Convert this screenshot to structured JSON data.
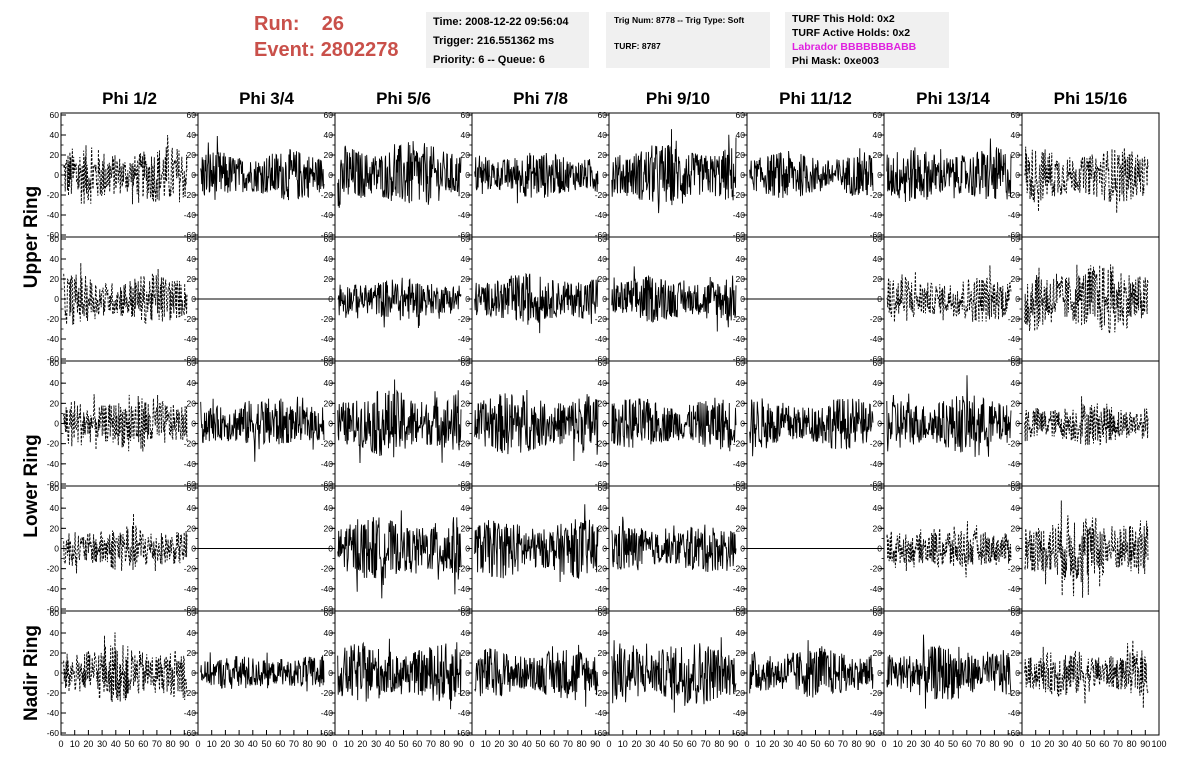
{
  "header": {
    "run_label": "Run:",
    "run_value": "26",
    "event_label": "Event:",
    "event_value": "2802278",
    "time_line": "Time: 2008-12-22 09:56:04",
    "trigger_line": "Trigger: 216.551362 ms",
    "priority_line": "Priority: 6 -- Queue: 6",
    "trig_num_line": "Trig Num: 8778 -- Trig Type: Soft",
    "turf_line": "TURF: 8787",
    "turf_hold_line": "TURF This Hold: 0x2",
    "turf_active_line": "TURF Active Holds: 0x2",
    "labrador_line": "Labrador BBBBBBBABB",
    "phi_mask_line": "Phi Mask: 0xe003",
    "labrador_color": "#e020e0",
    "run_color": "#c9504a"
  },
  "chart_data": {
    "type": "line",
    "columns": [
      "Phi 1/2",
      "Phi 3/4",
      "Phi 5/6",
      "Phi 7/8",
      "Phi 9/10",
      "Phi 11/12",
      "Phi 13/14",
      "Phi 15/16"
    ],
    "row_labels": [
      {
        "label": "Upper Ring",
        "rows": [
          0,
          1
        ]
      },
      {
        "label": "Lower Ring",
        "rows": [
          2,
          3
        ]
      },
      {
        "label": "Nadir Ring",
        "rows": [
          4
        ]
      }
    ],
    "xlim": [
      0,
      100
    ],
    "ylim": [
      -60,
      60
    ],
    "x_ticks": [
      0,
      10,
      20,
      30,
      40,
      50,
      60,
      70,
      80,
      90,
      100
    ],
    "y_ticks": [
      -60,
      -40,
      -20,
      0,
      20,
      40,
      60
    ],
    "grid": false,
    "panels": [
      [
        {
          "style": "dashed",
          "amplitude": 30,
          "flat": false
        },
        {
          "style": "solid",
          "amplitude": 26,
          "flat": false
        },
        {
          "style": "solid",
          "amplitude": 34,
          "flat": false
        },
        {
          "style": "solid",
          "amplitude": 24,
          "flat": false
        },
        {
          "style": "solid",
          "amplitude": 32,
          "flat": false
        },
        {
          "style": "solid",
          "amplitude": 24,
          "flat": false
        },
        {
          "style": "solid",
          "amplitude": 28,
          "flat": false
        },
        {
          "style": "dashed",
          "amplitude": 28,
          "flat": false
        }
      ],
      [
        {
          "style": "dashed",
          "amplitude": 26,
          "flat": false
        },
        {
          "style": "solid",
          "amplitude": 0,
          "flat": true
        },
        {
          "style": "solid",
          "amplitude": 22,
          "flat": false
        },
        {
          "style": "solid",
          "amplitude": 26,
          "flat": false
        },
        {
          "style": "solid",
          "amplitude": 24,
          "flat": false
        },
        {
          "style": "solid",
          "amplitude": 0,
          "flat": true
        },
        {
          "style": "dashed",
          "amplitude": 24,
          "flat": false
        },
        {
          "style": "dashed",
          "amplitude": 36,
          "flat": false
        }
      ],
      [
        {
          "style": "dashed",
          "amplitude": 28,
          "flat": false
        },
        {
          "style": "solid",
          "amplitude": 26,
          "flat": false
        },
        {
          "style": "solid",
          "amplitude": 34,
          "flat": false
        },
        {
          "style": "solid",
          "amplitude": 32,
          "flat": false
        },
        {
          "style": "solid",
          "amplitude": 26,
          "flat": false
        },
        {
          "style": "solid",
          "amplitude": 26,
          "flat": false
        },
        {
          "style": "solid",
          "amplitude": 30,
          "flat": false
        },
        {
          "style": "dashed",
          "amplitude": 22,
          "flat": false
        }
      ],
      [
        {
          "style": "dashed",
          "amplitude": 24,
          "flat": false
        },
        {
          "style": "solid",
          "amplitude": 0,
          "flat": true
        },
        {
          "style": "solid",
          "amplitude": 32,
          "flat": false
        },
        {
          "style": "solid",
          "amplitude": 30,
          "flat": false
        },
        {
          "style": "solid",
          "amplitude": 24,
          "flat": false
        },
        {
          "style": "solid",
          "amplitude": 0,
          "flat": true
        },
        {
          "style": "dashed",
          "amplitude": 22,
          "flat": false
        },
        {
          "style": "dashed",
          "amplitude": 36,
          "flat": false
        }
      ],
      [
        {
          "style": "dashed",
          "amplitude": 30,
          "flat": false
        },
        {
          "style": "solid",
          "amplitude": 18,
          "flat": false
        },
        {
          "style": "solid",
          "amplitude": 30,
          "flat": false
        },
        {
          "style": "solid",
          "amplitude": 26,
          "flat": false
        },
        {
          "style": "solid",
          "amplitude": 34,
          "flat": false
        },
        {
          "style": "solid",
          "amplitude": 26,
          "flat": false
        },
        {
          "style": "solid",
          "amplitude": 28,
          "flat": false
        },
        {
          "style": "dashed",
          "amplitude": 24,
          "flat": false
        }
      ]
    ]
  }
}
